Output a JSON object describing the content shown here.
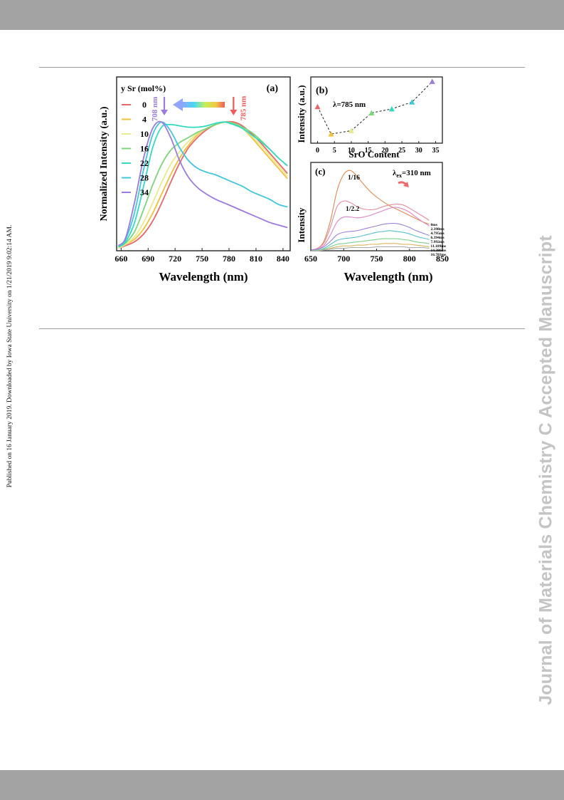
{
  "side_note": "Published on 16 January 2019. Downloaded by Iowa State University on 1/21/2019 9:02:14 AM.",
  "watermark": "Journal of Materials Chemistry C Accepted Manuscript",
  "chart_data": [
    {
      "panel": "(a)",
      "type": "line",
      "xlabel": "Wavelength (nm)",
      "ylabel": "Normalized Intensity (a.u.)",
      "xlim": [
        655,
        848
      ],
      "ylim": [
        0,
        1.1
      ],
      "xticks": [
        660,
        690,
        720,
        750,
        780,
        810,
        840
      ],
      "legend_title": "y Sr (mol%)",
      "legend_position": "top-left",
      "annotations": {
        "left_peak": "708 nm",
        "right_peak": "785 nm"
      },
      "colors": {
        "0": "#e8666a",
        "4": "#efc23a",
        "10": "#e6ec8c",
        "16": "#7cd67a",
        "22": "#33d9c1",
        "28": "#41c6e0",
        "34": "#9b7be0"
      },
      "series": [
        {
          "name": "0",
          "x": [
            657,
            665,
            675,
            685,
            695,
            705,
            715,
            725,
            735,
            745,
            755,
            765,
            775,
            785,
            795,
            805,
            815,
            825,
            835,
            845
          ],
          "y": [
            0.02,
            0.04,
            0.07,
            0.13,
            0.23,
            0.37,
            0.53,
            0.68,
            0.8,
            0.88,
            0.94,
            0.98,
            1.0,
            1.0,
            0.97,
            0.91,
            0.84,
            0.76,
            0.68,
            0.6
          ]
        },
        {
          "name": "4",
          "x": [
            657,
            665,
            675,
            685,
            695,
            705,
            715,
            725,
            735,
            745,
            755,
            765,
            775,
            785,
            795,
            805,
            815,
            825,
            835,
            845
          ],
          "y": [
            0.02,
            0.05,
            0.09,
            0.17,
            0.29,
            0.44,
            0.59,
            0.72,
            0.82,
            0.9,
            0.95,
            0.98,
            1.0,
            0.99,
            0.95,
            0.88,
            0.8,
            0.72,
            0.64,
            0.56
          ]
        },
        {
          "name": "10",
          "x": [
            657,
            665,
            675,
            685,
            695,
            705,
            715,
            725,
            735,
            745,
            755,
            765,
            775,
            785,
            795,
            805,
            815,
            825,
            835,
            845
          ],
          "y": [
            0.02,
            0.05,
            0.11,
            0.22,
            0.37,
            0.53,
            0.67,
            0.77,
            0.85,
            0.91,
            0.95,
            0.98,
            1.0,
            0.99,
            0.95,
            0.89,
            0.82,
            0.74,
            0.66,
            0.58
          ]
        },
        {
          "name": "16",
          "x": [
            657,
            665,
            675,
            685,
            695,
            705,
            715,
            725,
            735,
            745,
            755,
            765,
            775,
            785,
            795,
            805,
            815,
            825,
            835,
            845
          ],
          "y": [
            0.03,
            0.06,
            0.15,
            0.32,
            0.51,
            0.67,
            0.78,
            0.84,
            0.88,
            0.92,
            0.95,
            0.98,
            1.0,
            0.99,
            0.96,
            0.92,
            0.86,
            0.79,
            0.72,
            0.66
          ]
        },
        {
          "name": "22",
          "x": [
            657,
            665,
            675,
            685,
            695,
            705,
            715,
            725,
            735,
            745,
            755,
            765,
            775,
            785,
            795,
            805,
            815,
            825,
            835,
            845
          ],
          "y": [
            0.03,
            0.07,
            0.22,
            0.5,
            0.8,
            0.96,
            0.98,
            0.97,
            0.96,
            0.96,
            0.97,
            0.99,
            1.0,
            0.98,
            0.95,
            0.9,
            0.85,
            0.79,
            0.72,
            0.66
          ]
        },
        {
          "name": "28",
          "x": [
            657,
            665,
            675,
            685,
            695,
            705,
            715,
            725,
            735,
            745,
            755,
            765,
            775,
            785,
            795,
            805,
            815,
            825,
            835,
            845
          ],
          "y": [
            0.04,
            0.09,
            0.3,
            0.63,
            0.9,
            1.0,
            0.93,
            0.8,
            0.7,
            0.64,
            0.61,
            0.59,
            0.56,
            0.53,
            0.5,
            0.46,
            0.43,
            0.4,
            0.36,
            0.34
          ]
        },
        {
          "name": "34",
          "x": [
            657,
            665,
            675,
            685,
            695,
            705,
            715,
            725,
            735,
            745,
            755,
            765,
            775,
            785,
            795,
            805,
            815,
            825,
            835,
            845
          ],
          "y": [
            0.04,
            0.1,
            0.38,
            0.72,
            0.95,
            1.0,
            0.88,
            0.7,
            0.57,
            0.49,
            0.44,
            0.4,
            0.37,
            0.34,
            0.31,
            0.28,
            0.25,
            0.22,
            0.2,
            0.18
          ]
        }
      ]
    },
    {
      "panel": "(b)",
      "type": "scatter",
      "xlabel": "SrO Content",
      "ylabel": "Intensity (a.u.)",
      "annotation": "λ=785 nm",
      "xlim": [
        -2,
        37
      ],
      "ylim": [
        0,
        1
      ],
      "xticks": [
        0,
        5,
        10,
        15,
        20,
        25,
        30,
        35
      ],
      "x": [
        0,
        4,
        10,
        16,
        22,
        28,
        34
      ],
      "y": [
        0.56,
        0.08,
        0.14,
        0.45,
        0.52,
        0.64,
        1.0
      ]
    },
    {
      "panel": "(c)",
      "type": "line",
      "xlabel": "Wavelength (nm)",
      "ylabel": "Intensity",
      "annotation_prefix": "λ",
      "annotation_sub": "ex",
      "annotation_rest": "=310 nm",
      "ratio_labels": [
        "1/16",
        "1/2.2"
      ],
      "xlim": [
        650,
        850
      ],
      "ylim": [
        0,
        1.1
      ],
      "xticks": [
        650,
        700,
        750,
        800,
        850
      ],
      "x": [
        650,
        660,
        670,
        680,
        690,
        700,
        710,
        720,
        730,
        740,
        750,
        760,
        770,
        780,
        790,
        800,
        810,
        820,
        830
      ],
      "series": [
        {
          "name": "0ms",
          "color": "#e08a4e",
          "y": [
            0.01,
            0.03,
            0.12,
            0.38,
            0.75,
            0.95,
            1.0,
            0.93,
            0.83,
            0.74,
            0.67,
            0.61,
            0.56,
            0.52,
            0.48,
            0.44,
            0.4,
            0.36,
            0.33
          ]
        },
        {
          "name": "2.398ms",
          "color": "#e88a9a",
          "y": [
            0.01,
            0.03,
            0.1,
            0.3,
            0.55,
            0.62,
            0.6,
            0.55,
            0.52,
            0.51,
            0.52,
            0.55,
            0.57,
            0.58,
            0.57,
            0.53,
            0.48,
            0.43,
            0.38
          ]
        },
        {
          "name": "4.795ms",
          "color": "#de86c8",
          "y": [
            0.01,
            0.02,
            0.07,
            0.2,
            0.36,
            0.42,
            0.42,
            0.41,
            0.42,
            0.44,
            0.47,
            0.5,
            0.53,
            0.54,
            0.52,
            0.48,
            0.42,
            0.36,
            0.31
          ]
        },
        {
          "name": "6.394ms",
          "color": "#9c82da",
          "y": [
            0.01,
            0.02,
            0.05,
            0.12,
            0.2,
            0.23,
            0.24,
            0.25,
            0.27,
            0.29,
            0.31,
            0.33,
            0.34,
            0.34,
            0.32,
            0.29,
            0.25,
            0.22,
            0.19
          ]
        },
        {
          "name": "7.992ms",
          "color": "#5bbfd0",
          "y": [
            0.0,
            0.01,
            0.03,
            0.08,
            0.13,
            0.15,
            0.16,
            0.17,
            0.19,
            0.21,
            0.23,
            0.24,
            0.25,
            0.24,
            0.23,
            0.21,
            0.18,
            0.16,
            0.14
          ]
        },
        {
          "name": "11.189ms",
          "color": "#7fcf8e",
          "y": [
            0.0,
            0.01,
            0.02,
            0.05,
            0.08,
            0.09,
            0.1,
            0.11,
            0.12,
            0.13,
            0.14,
            0.15,
            0.15,
            0.15,
            0.14,
            0.13,
            0.11,
            0.1,
            0.09
          ]
        },
        {
          "name": "14.386ms",
          "color": "#d9b45a",
          "y": [
            0.0,
            0.0,
            0.01,
            0.03,
            0.05,
            0.06,
            0.06,
            0.07,
            0.07,
            0.08,
            0.08,
            0.09,
            0.09,
            0.09,
            0.08,
            0.08,
            0.07,
            0.06,
            0.05
          ]
        },
        {
          "name": "16.783ms",
          "color": "#aaaaaa",
          "y": [
            0.0,
            0.0,
            0.01,
            0.02,
            0.03,
            0.03,
            0.04,
            0.04,
            0.04,
            0.04,
            0.05,
            0.05,
            0.05,
            0.05,
            0.05,
            0.04,
            0.04,
            0.04,
            0.03
          ]
        }
      ]
    }
  ]
}
